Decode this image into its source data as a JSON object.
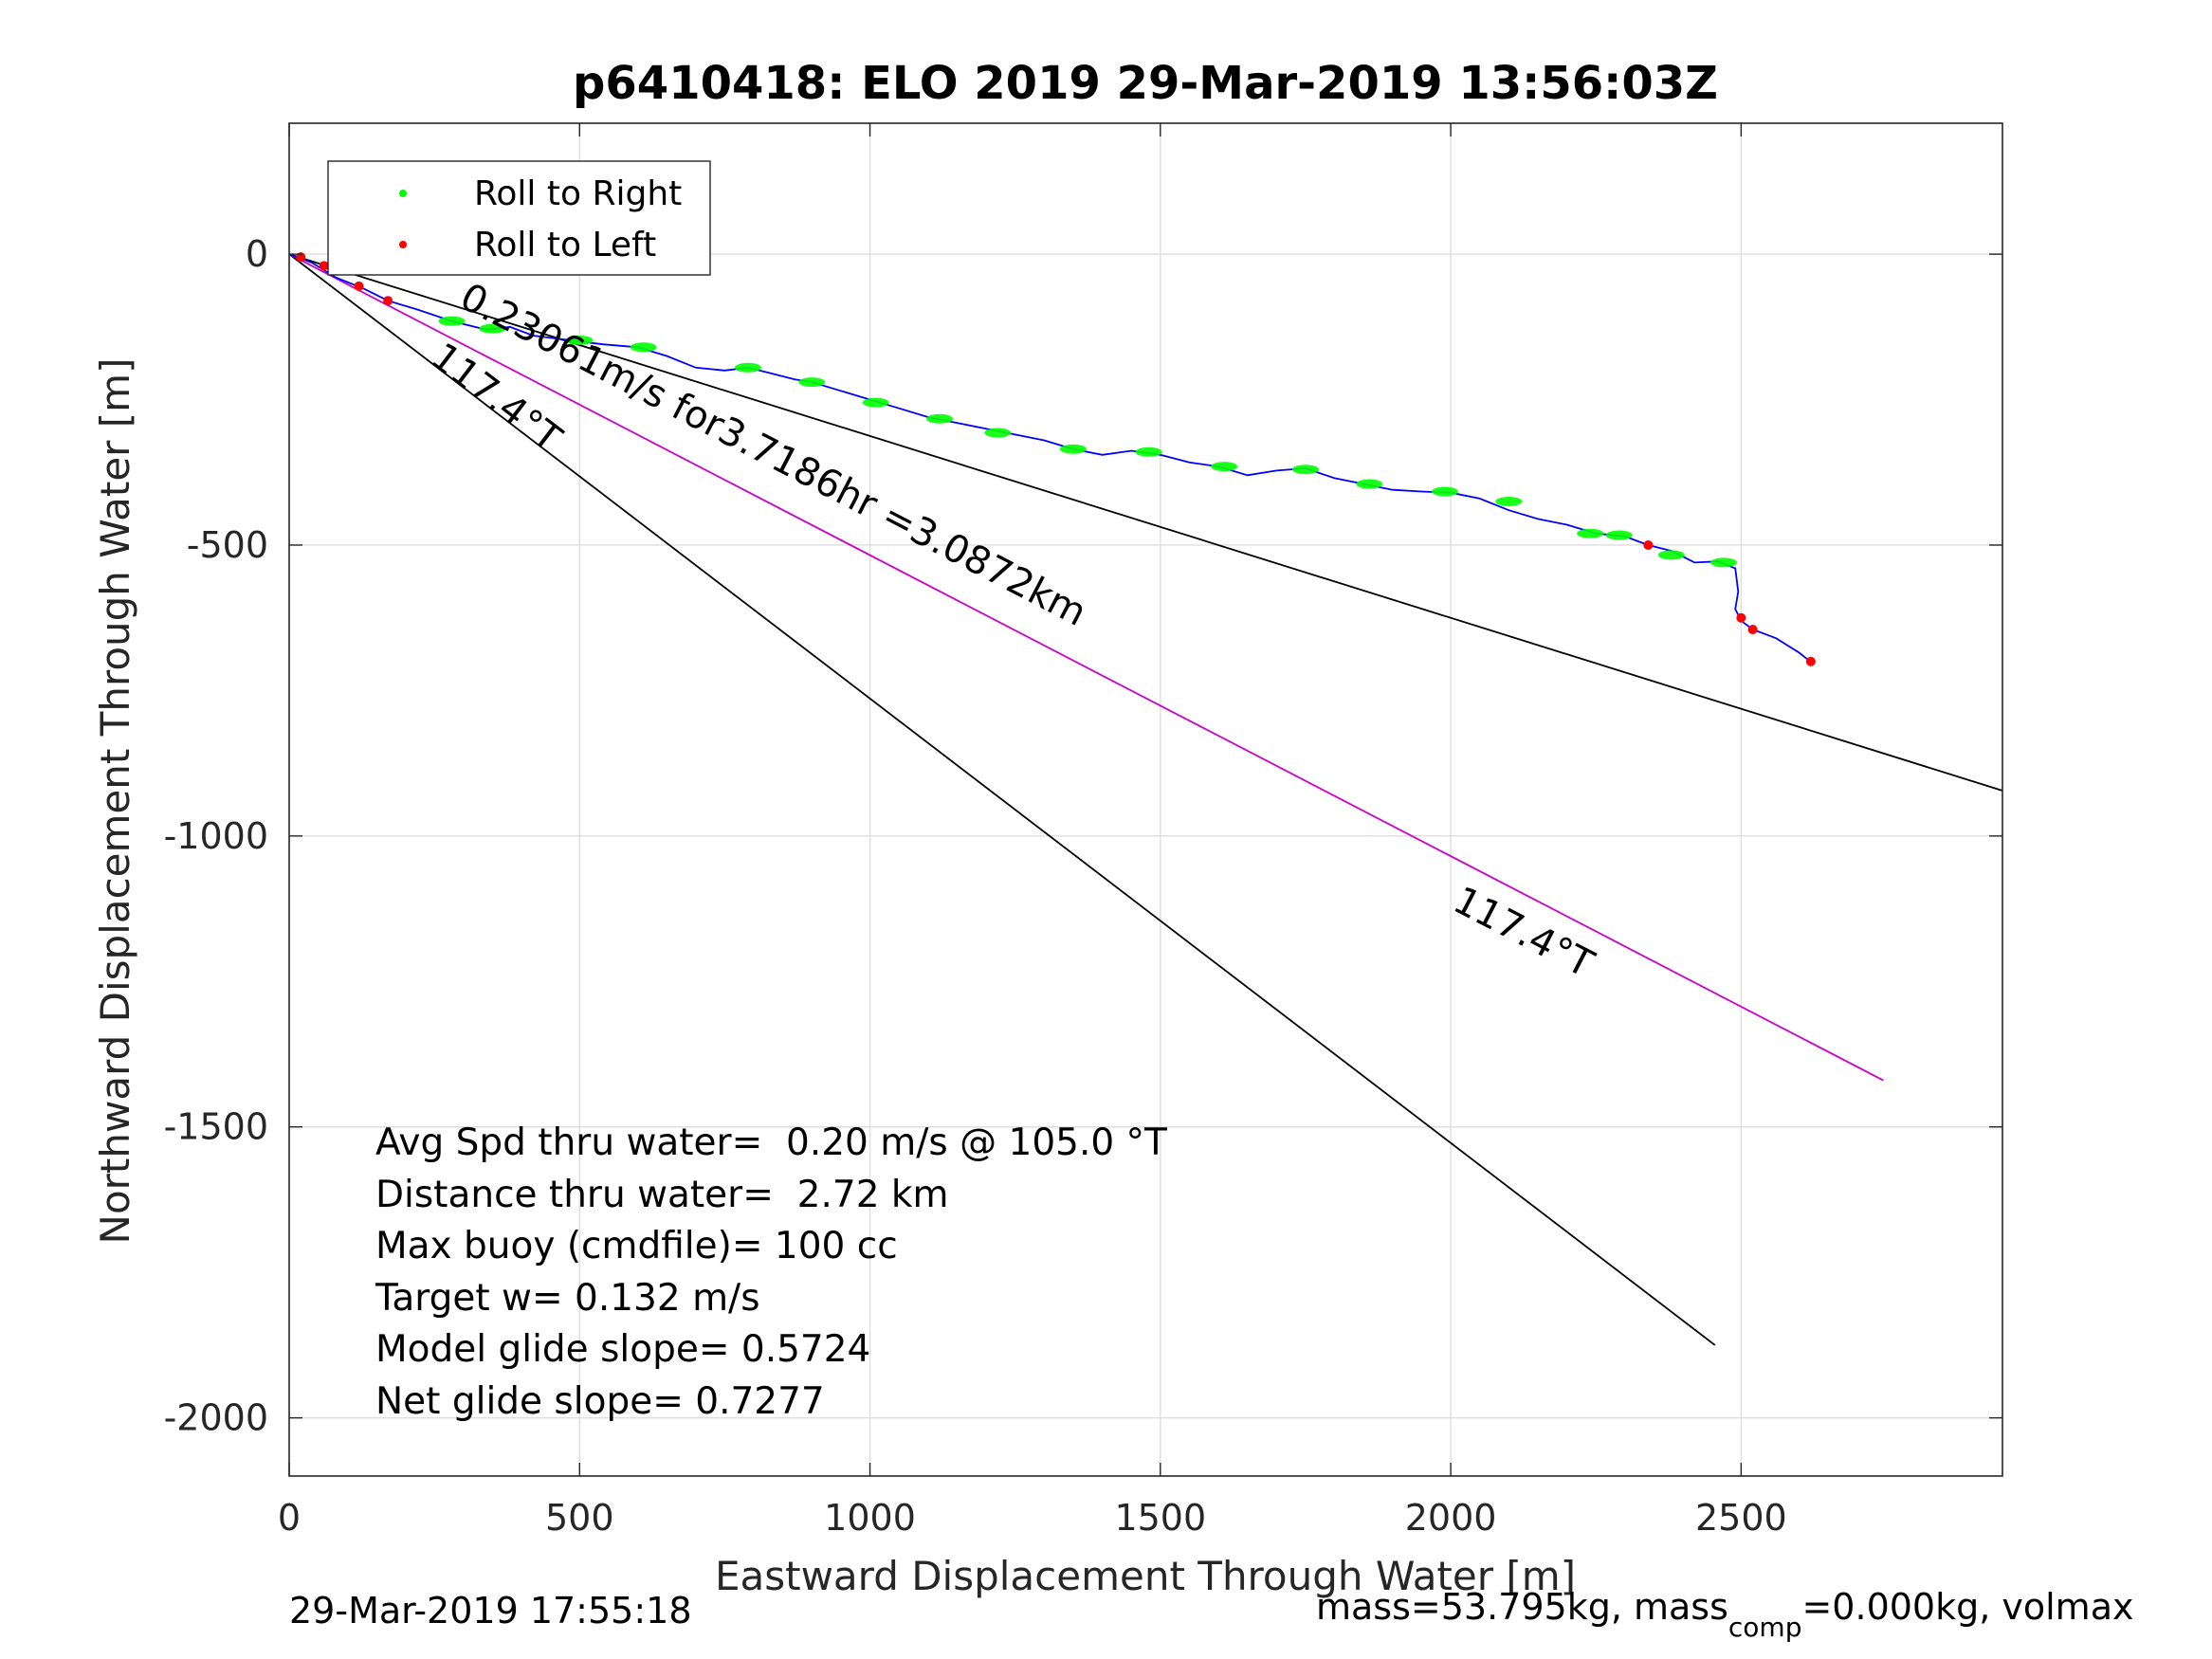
{
  "chart_data": {
    "type": "scatter",
    "title": "p6410418: ELO 2019 29-Mar-2019 13:56:03Z",
    "xlabel": "Eastward Displacement Through Water [m]",
    "ylabel": "Northward Displacement Through Water [m]",
    "xlim": [
      0,
      2950
    ],
    "ylim": [
      -2100,
      225
    ],
    "xticks": [
      0,
      500,
      1000,
      1500,
      2000,
      2500
    ],
    "yticks": [
      0,
      -500,
      -1000,
      -1500,
      -2000
    ],
    "xtick_labels": [
      "0",
      "500",
      "1000",
      "1500",
      "2000",
      "2500"
    ],
    "ytick_labels": [
      "0",
      "-500",
      "-1000",
      "-1500",
      "-2000"
    ],
    "grid": true,
    "legend_position": "top-left",
    "legend": [
      {
        "label": "Roll to Right",
        "color": "#00ff00"
      },
      {
        "label": "Roll to Left",
        "color": "#ff0000"
      }
    ],
    "colors": {
      "track": "#0000ff",
      "heading_line": "#cc00cc",
      "bound_line": "#000000"
    },
    "track": {
      "x": [
        0,
        40,
        80,
        130,
        170,
        220,
        280,
        340,
        380,
        420,
        460,
        500,
        540,
        600,
        650,
        700,
        750,
        790,
        830,
        870,
        900,
        950,
        1000,
        1050,
        1100,
        1150,
        1200,
        1250,
        1300,
        1350,
        1400,
        1450,
        1500,
        1550,
        1600,
        1650,
        1700,
        1750,
        1800,
        1850,
        1900,
        1950,
        2000,
        2050,
        2100,
        2150,
        2200,
        2250,
        2300,
        2340,
        2380,
        2420,
        2460,
        2490,
        2495,
        2490,
        2500,
        2520,
        2560,
        2600,
        2625
      ],
      "y": [
        0,
        -15,
        -40,
        -60,
        -80,
        -95,
        -115,
        -130,
        -125,
        -140,
        -145,
        -150,
        -155,
        -160,
        -175,
        -195,
        -200,
        -195,
        -205,
        -215,
        -220,
        -235,
        -250,
        -265,
        -280,
        -290,
        -300,
        -310,
        -320,
        -335,
        -345,
        -338,
        -345,
        -358,
        -365,
        -380,
        -372,
        -368,
        -385,
        -395,
        -405,
        -408,
        -410,
        -420,
        -440,
        -455,
        -465,
        -480,
        -485,
        -500,
        -510,
        -530,
        -528,
        -540,
        -580,
        -610,
        -630,
        -645,
        -660,
        -685,
        -705
      ]
    },
    "roll_right_points": {
      "x": [
        280,
        350,
        500,
        610,
        790,
        900,
        1010,
        1120,
        1220,
        1350,
        1480,
        1610,
        1750,
        1860,
        1990,
        2100,
        2240,
        2290,
        2380,
        2470
      ],
      "y": [
        -115,
        -128,
        -148,
        -160,
        -195,
        -220,
        -255,
        -283,
        -307,
        -335,
        -340,
        -365,
        -370,
        -395,
        -408,
        -425,
        -480,
        -483,
        -517,
        -530
      ]
    },
    "roll_left_points": {
      "x": [
        20,
        60,
        120,
        170,
        2340,
        2500,
        2520,
        2620
      ],
      "y": [
        -5,
        -20,
        -55,
        -80,
        -500,
        -625,
        -645,
        -700
      ]
    },
    "heading_line": {
      "x": [
        0,
        2745
      ],
      "y": [
        0,
        -1420
      ]
    },
    "bound_lines": [
      {
        "x": [
          0,
          2950
        ],
        "y": [
          0,
          -922
        ]
      },
      {
        "x": [
          0,
          2455
        ],
        "y": [
          0,
          -1875
        ]
      }
    ],
    "annotations": [
      {
        "text": "0.23061m/s for3.7186hr =3.0872km",
        "x": 290,
        "y": -88,
        "angle": 27.4
      },
      {
        "text": "117.4°T",
        "x": 240,
        "y": -185,
        "angle": 37.4
      },
      {
        "text": "117.4°T",
        "x": 2000,
        "y": -1125,
        "angle": 27.4
      }
    ],
    "stats": [
      "Avg Spd thru water=  0.20 m/s @ 105.0 °T",
      "Distance thru water=  2.72 km",
      "Max buoy (cmdfile)= 100 cc",
      "Target w= 0.132 m/s",
      "Model glide slope= 0.5724",
      "Net glide slope= 0.7277"
    ]
  },
  "footer": {
    "timestamp": "29-Mar-2019 17:55:18",
    "mass_prefix": "mass=53.795kg, mass",
    "mass_sub": "comp",
    "mass_suffix": "=0.000kg, volmax"
  }
}
